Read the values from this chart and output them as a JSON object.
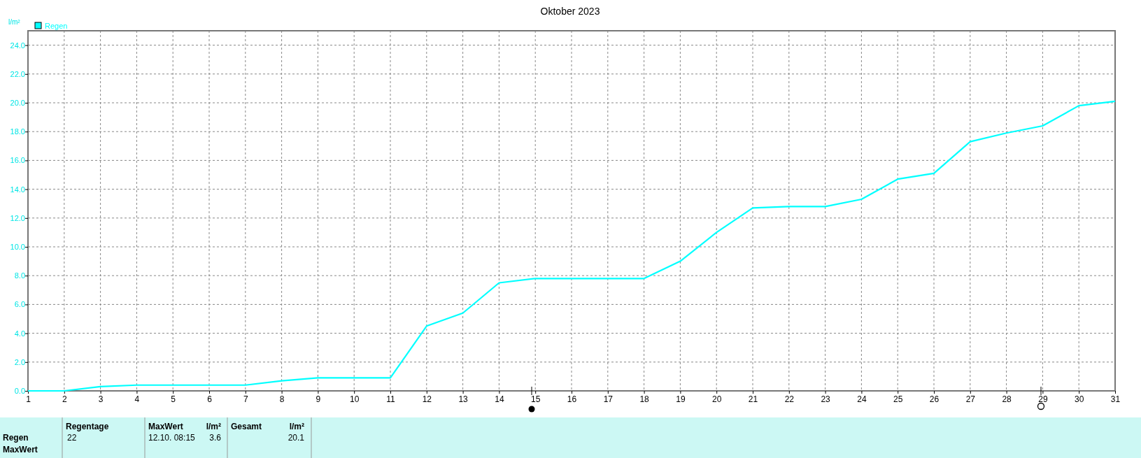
{
  "chart_data": {
    "type": "line",
    "title": "Oktober 2023",
    "ylabel": "l/m²",
    "x": [
      1,
      2,
      3,
      4,
      5,
      6,
      7,
      8,
      9,
      10,
      11,
      12,
      13,
      14,
      15,
      16,
      17,
      18,
      19,
      20,
      21,
      22,
      23,
      24,
      25,
      26,
      27,
      28,
      29,
      30,
      31
    ],
    "series": [
      {
        "name": "Regen",
        "color": "#00ffff",
        "values": [
          0,
          0,
          0.3,
          0.4,
          0.4,
          0.4,
          0.4,
          0.7,
          0.9,
          0.9,
          0.9,
          4.5,
          5.4,
          7.5,
          7.8,
          7.8,
          7.8,
          7.8,
          9.0,
          11.0,
          12.7,
          12.8,
          12.8,
          13.3,
          14.7,
          15.1,
          17.3,
          17.9,
          18.4,
          19.8,
          20.1
        ]
      }
    ],
    "xlim": [
      1,
      31
    ],
    "xticks": [
      1,
      2,
      3,
      4,
      5,
      6,
      7,
      8,
      9,
      10,
      11,
      12,
      13,
      14,
      15,
      16,
      17,
      18,
      19,
      20,
      21,
      22,
      23,
      24,
      25,
      26,
      27,
      28,
      29,
      30,
      31
    ],
    "ylim": [
      0,
      25
    ],
    "yticks": [
      {
        "value": 0,
        "label": "0.0"
      },
      {
        "value": 2,
        "label": "2.0"
      },
      {
        "value": 4,
        "label": "4.0"
      },
      {
        "value": 6,
        "label": "6.0"
      },
      {
        "value": 8,
        "label": "8.0"
      },
      {
        "value": 10,
        "label": "10.0"
      },
      {
        "value": 12,
        "label": "12.0"
      },
      {
        "value": 14,
        "label": "14.0"
      },
      {
        "value": 16,
        "label": "16.0"
      },
      {
        "value": 18,
        "label": "18.0"
      },
      {
        "value": 20,
        "label": "20.0"
      },
      {
        "value": 22,
        "label": "22.0"
      },
      {
        "value": 24,
        "label": "24.0"
      }
    ],
    "grid": true,
    "legend": "top left",
    "marker": "none",
    "line_style": "solid",
    "annotations": [
      "Regen",
      "MaxWert",
      "Regentage",
      "22",
      "MaxWert",
      "l/m²",
      "12.10.  08:15",
      "3.6",
      "Gesamt",
      "l/m²",
      "20.1"
    ]
  }
}
